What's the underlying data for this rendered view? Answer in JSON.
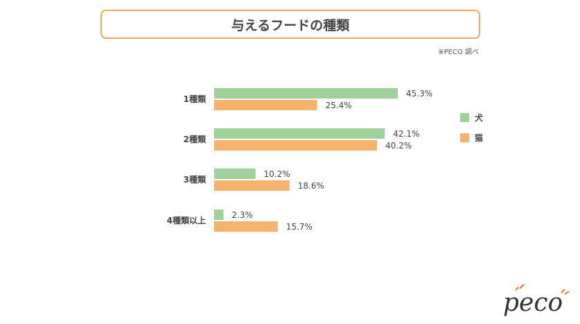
{
  "title": "与えるフードの種類",
  "source_note": "※PECO 調べ",
  "logo_text": "peco",
  "colors": {
    "dog": "#9fd19a",
    "cat": "#f7b26b",
    "accent": "#f2a65a",
    "text": "#444444"
  },
  "chart_data": {
    "type": "bar",
    "orientation": "horizontal",
    "categories": [
      "1種類",
      "2種類",
      "3種類",
      "4種類以上"
    ],
    "series": [
      {
        "name": "犬",
        "values": [
          45.3,
          42.1,
          10.2,
          2.3
        ]
      },
      {
        "name": "猫",
        "values": [
          25.4,
          40.2,
          18.6,
          15.7
        ]
      }
    ],
    "value_labels": [
      [
        "45.3%",
        "42.1%",
        "10.2%",
        "2.3%"
      ],
      [
        "25.4%",
        "40.2%",
        "18.6%",
        "15.7%"
      ]
    ],
    "unit": "%",
    "xlim": [
      0,
      45.3
    ],
    "legend": "right",
    "grid": false
  }
}
